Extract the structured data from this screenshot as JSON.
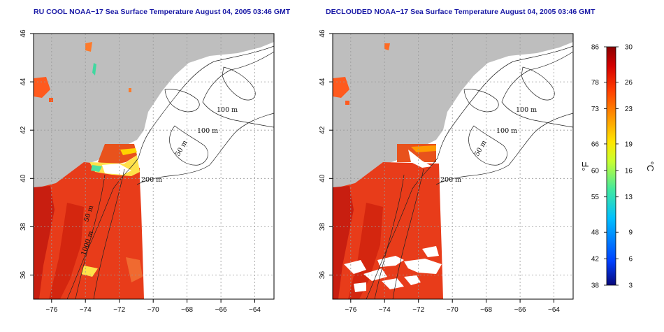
{
  "panels": [
    {
      "id": "left",
      "title": "RU COOL NOAA−17 Sea Surface Temperature August 04, 2005 03:46 GMT"
    },
    {
      "id": "right",
      "title": "DECLOUDED NOAA−17 Sea Surface Temperature August 04, 2005 03:46 GMT"
    }
  ],
  "axes": {
    "x_ticks": [
      "−76",
      "−74",
      "−72",
      "−70",
      "−68",
      "−66",
      "−64"
    ],
    "x_values": [
      -76,
      -74,
      -72,
      -70,
      -68,
      -66,
      -64
    ],
    "y_ticks": [
      "36",
      "38",
      "40",
      "42",
      "44",
      "46"
    ],
    "y_values": [
      36,
      38,
      40,
      42,
      44,
      46
    ],
    "lon_range": [
      -77.2,
      -63.0
    ],
    "lat_range": [
      35.0,
      46.0
    ],
    "grid": "dotted"
  },
  "contour_labels": [
    "100 m",
    "100 m",
    "50 m",
    "200 m",
    "50 m",
    "1000 m"
  ],
  "colorbar": {
    "fahrenheit_ticks": [
      "86",
      "78",
      "73",
      "66",
      "60",
      "55",
      "48",
      "42",
      "38"
    ],
    "celsius_ticks": [
      "30",
      "26",
      "23",
      "19",
      "16",
      "13",
      "9",
      "6",
      "3"
    ],
    "celsius_values": [
      30,
      26,
      23,
      19,
      16,
      13,
      9,
      6,
      3
    ],
    "unit_f": "°F",
    "unit_c": "°C",
    "colors": [
      "#08087a",
      "#0050ff",
      "#00c8ff",
      "#40e8a0",
      "#c8ff30",
      "#ffe600",
      "#ff9a00",
      "#ff3c00",
      "#d40000",
      "#8b0000"
    ]
  },
  "map_colors": {
    "land": "#bebebe",
    "warm_water": "#e83c1a",
    "hot_water": "#c81e10",
    "no_data": "#ffffff"
  }
}
